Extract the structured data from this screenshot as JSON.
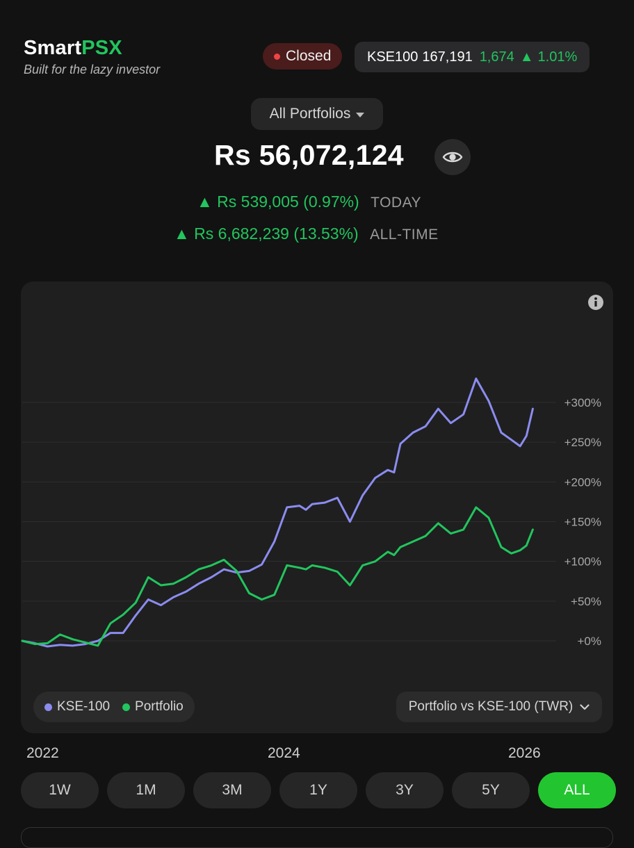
{
  "header": {
    "brand_prefix": "Smart",
    "brand_suffix": "PSX",
    "tagline": "Built for the lazy investor",
    "market_status": "Closed",
    "index": {
      "name": "KSE100",
      "value": "167,191",
      "change": "1,674",
      "change_arrow": "▲",
      "change_pct": "1.01%"
    }
  },
  "portfolio": {
    "selector_label": "All Portfolios",
    "total_value": "Rs 56,072,124",
    "today": {
      "arrow": "▲",
      "amount": "Rs 539,005",
      "pct": "(0.97%)",
      "label": "TODAY"
    },
    "all_time": {
      "arrow": "▲",
      "amount": "Rs 6,682,239",
      "pct": "(13.53%)",
      "label": "ALL-TIME"
    }
  },
  "legend": [
    {
      "name": "KSE-100",
      "color": "#8b8cf0"
    },
    {
      "name": "Portfolio",
      "color": "#22c55e"
    }
  ],
  "chart_mode_label": "Portfolio vs KSE-100 (TWR)",
  "x_axis_labels": [
    "2022",
    "2024",
    "2026"
  ],
  "time_ranges": [
    "1W",
    "1M",
    "3M",
    "1Y",
    "3Y",
    "5Y",
    "ALL"
  ],
  "active_range": "ALL",
  "chart_data": {
    "type": "line",
    "y_unit": "%",
    "ylim": [
      -30,
      360
    ],
    "y_ticks": [
      {
        "value": 0,
        "label": "+0%"
      },
      {
        "value": 50,
        "label": "+50%"
      },
      {
        "value": 100,
        "label": "+100%"
      },
      {
        "value": 150,
        "label": "+150%"
      },
      {
        "value": 200,
        "label": "+200%"
      },
      {
        "value": 250,
        "label": "+250%"
      },
      {
        "value": 300,
        "label": "+300%"
      }
    ],
    "xlim": [
      2022.0,
      2026.07
    ],
    "x": [
      2022.0,
      2022.1,
      2022.2,
      2022.3,
      2022.4,
      2022.5,
      2022.6,
      2022.7,
      2022.8,
      2022.9,
      2023.0,
      2023.1,
      2023.2,
      2023.3,
      2023.4,
      2023.5,
      2023.6,
      2023.7,
      2023.8,
      2023.9,
      2024.0,
      2024.1,
      2024.2,
      2024.25,
      2024.3,
      2024.4,
      2024.5,
      2024.6,
      2024.7,
      2024.8,
      2024.9,
      2024.95,
      2025.0,
      2025.1,
      2025.2,
      2025.3,
      2025.4,
      2025.5,
      2025.6,
      2025.7,
      2025.8,
      2025.88,
      2025.95,
      2026.0,
      2026.05
    ],
    "series": [
      {
        "name": "KSE-100",
        "color": "#8b8cf0",
        "values": [
          0,
          -3,
          -7,
          -5,
          -6,
          -4,
          0,
          10,
          10,
          32,
          52,
          45,
          55,
          62,
          72,
          80,
          90,
          86,
          88,
          96,
          125,
          168,
          170,
          165,
          172,
          174,
          180,
          150,
          183,
          205,
          215,
          212,
          248,
          262,
          270,
          292,
          274,
          285,
          330,
          302,
          262,
          253,
          245,
          258,
          292
        ]
      },
      {
        "name": "Portfolio",
        "color": "#22c55e",
        "values": [
          0,
          -4,
          -3,
          8,
          2,
          -2,
          -6,
          22,
          33,
          48,
          80,
          70,
          72,
          80,
          90,
          95,
          102,
          88,
          60,
          52,
          58,
          95,
          92,
          90,
          95,
          92,
          87,
          70,
          95,
          100,
          112,
          108,
          118,
          125,
          132,
          148,
          135,
          140,
          168,
          155,
          118,
          110,
          114,
          120,
          140
        ]
      }
    ]
  }
}
